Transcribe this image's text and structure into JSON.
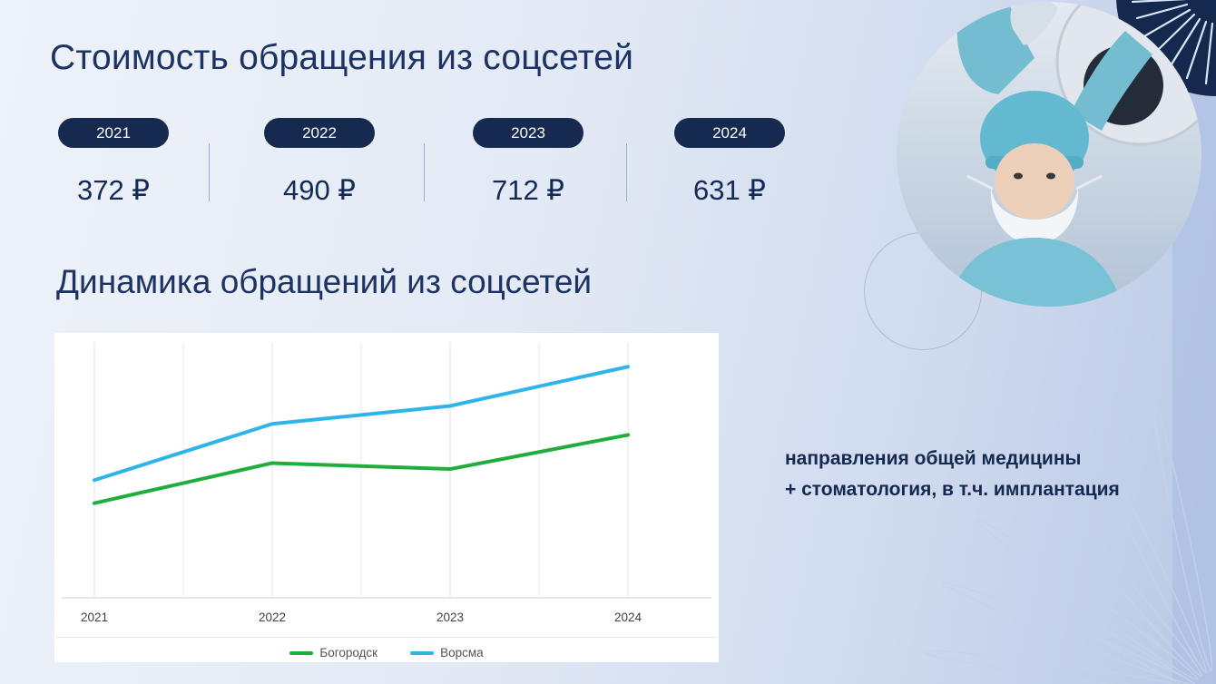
{
  "slide": {
    "title": "Стоимость обращения из соцсетей",
    "note_line1": "направления общей медицины",
    "note_line2": "+ стоматология, в т.ч. имплантация"
  },
  "stats": {
    "items": [
      {
        "year": "2021",
        "price": "372 ₽"
      },
      {
        "year": "2022",
        "price": "490 ₽"
      },
      {
        "year": "2023",
        "price": "712 ₽"
      },
      {
        "year": "2024",
        "price": "631 ₽"
      }
    ]
  },
  "chart_data": {
    "type": "line",
    "title": "Динамика обращений из соцсетей",
    "categories": [
      "2021",
      "2022",
      "2023",
      "2024"
    ],
    "series": [
      {
        "name": "Богородск",
        "color": "#1fae3c",
        "values": [
          111,
          158,
          151,
          191
        ]
      },
      {
        "name": "Ворсма",
        "color": "#2eb3ea",
        "values": [
          138,
          204,
          225,
          271
        ]
      }
    ],
    "xlabel": "",
    "ylabel": "",
    "ylim": [
      0,
      300
    ],
    "grid": "vertical",
    "legend_position": "bottom",
    "y_ticks_visible": false
  },
  "colors": {
    "accent_navy": "#16294e",
    "title_text": "#1d3363",
    "green_series": "#1fae3c",
    "blue_series": "#2eb3ea",
    "panel_bg": "#ffffff"
  }
}
